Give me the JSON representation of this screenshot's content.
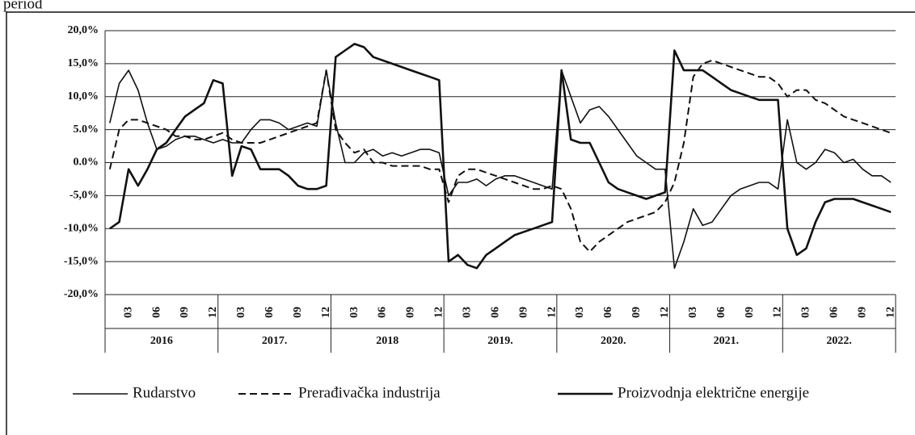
{
  "chart_data": {
    "type": "line",
    "title": "period",
    "categories": [
      null,
      null,
      "03",
      null,
      null,
      "06",
      null,
      null,
      "09",
      null,
      null,
      "12",
      null,
      null,
      "03",
      null,
      null,
      "06",
      null,
      null,
      "09",
      null,
      null,
      "12",
      null,
      null,
      "03",
      null,
      null,
      "06",
      null,
      null,
      "09",
      null,
      null,
      "12",
      null,
      null,
      "03",
      null,
      null,
      "06",
      null,
      null,
      "09",
      null,
      null,
      "12",
      null,
      null,
      "03",
      null,
      null,
      "06",
      null,
      null,
      "09",
      null,
      null,
      "12",
      null,
      null,
      "03",
      null,
      null,
      "06",
      null,
      null,
      "09",
      null,
      null,
      "12",
      null,
      null,
      "03",
      null,
      null,
      "06",
      null,
      null,
      "09",
      null,
      null,
      "12"
    ],
    "years": [
      "2016",
      "2017.",
      "2018",
      "2019.",
      "2020.",
      "2021.",
      "2022."
    ],
    "ylim": [
      -20,
      20
    ],
    "yticks": [
      {
        "value": -20,
        "label": "-20,0%"
      },
      {
        "value": -15,
        "label": "-15,0%"
      },
      {
        "value": -10,
        "label": "-10,0%"
      },
      {
        "value": -5,
        "label": "-5,0%"
      },
      {
        "value": 0,
        "label": "0.0%"
      },
      {
        "value": 5,
        "label": "5.0%"
      },
      {
        "value": 10,
        "label": "10,0%"
      },
      {
        "value": 15,
        "label": "15,0%"
      },
      {
        "value": 20,
        "label": "20,0%"
      }
    ],
    "grid": true,
    "series": [
      {
        "name": "Rudarstvo",
        "color": "#111111",
        "dash": false,
        "width": 1.6,
        "values": [
          6,
          12,
          14,
          11,
          6,
          2,
          2.5,
          3.5,
          4,
          4,
          3.5,
          3,
          3.5,
          3,
          3,
          5,
          6.5,
          6.5,
          6,
          5,
          5.5,
          6,
          5.5,
          14,
          6,
          0,
          0,
          1.5,
          2,
          1,
          1.5,
          1,
          1.5,
          2,
          2,
          1.5,
          -5,
          -3,
          -3,
          -2.5,
          -3.5,
          -2.5,
          -2,
          -2,
          -2.5,
          -3,
          -3.5,
          -4,
          14,
          10,
          6,
          8,
          8.5,
          7,
          5,
          3,
          1,
          0,
          -1,
          -1,
          -16,
          -12,
          -7,
          -9.5,
          -9,
          -7,
          -5,
          -4,
          -3.5,
          -3,
          -3,
          -4,
          6.5,
          0,
          -1,
          0,
          2,
          1.5,
          0,
          0.5,
          -1,
          -2,
          -2,
          -3
        ]
      },
      {
        "name": "Prerađivačka industrija",
        "color": "#111111",
        "dash": true,
        "width": 2,
        "values": [
          -1,
          5,
          6.5,
          6.5,
          6,
          5.5,
          5,
          4,
          4,
          3.5,
          3.5,
          4,
          4.5,
          3.5,
          3,
          3,
          3,
          3.5,
          4,
          4.5,
          5,
          5.5,
          6,
          14,
          5,
          3,
          1.5,
          2,
          0,
          0,
          -0.5,
          -0.5,
          -0.5,
          -0.5,
          -1,
          -1,
          -6,
          -2,
          -1,
          -1,
          -1.5,
          -2,
          -2.5,
          -3,
          -3.5,
          -4,
          -4,
          -3.5,
          -4,
          -7,
          -12,
          -13.5,
          -12,
          -11,
          -10,
          -9,
          -8.5,
          -8,
          -7.5,
          -6,
          -3,
          3,
          13,
          15,
          15.5,
          15,
          14.5,
          14,
          13.5,
          13,
          13,
          12,
          10,
          11,
          11,
          9.5,
          9,
          8,
          7,
          6.5,
          6,
          5.5,
          5,
          4.5
        ]
      },
      {
        "name": "Proizvodnja električne energije",
        "color": "#111111",
        "dash": false,
        "width": 2.6,
        "values": [
          -10,
          -9,
          -1,
          -3.5,
          -1,
          2,
          3,
          5,
          7,
          8,
          9,
          12.5,
          12,
          -2,
          2.5,
          2,
          -1,
          -1,
          -1,
          -2,
          -3.5,
          -4,
          -4,
          -3.5,
          16,
          17,
          18,
          17.5,
          16,
          15.5,
          15,
          14.5,
          14,
          13.5,
          13,
          12.5,
          -15,
          -14,
          -15.5,
          -16,
          -14,
          -13,
          -12,
          -11,
          -10.5,
          -10,
          -9.5,
          -9,
          14,
          3.5,
          3,
          3,
          0,
          -3,
          -4,
          -4.5,
          -5,
          -5.5,
          -5,
          -4.5,
          17,
          14,
          14,
          14,
          13,
          12,
          11,
          10.5,
          10,
          9.5,
          9.5,
          9.5,
          -10,
          -14,
          -13,
          -9,
          -6,
          -5.5,
          -5.5,
          -5.5,
          -6,
          -6.5,
          -7,
          -7.5
        ]
      }
    ]
  }
}
